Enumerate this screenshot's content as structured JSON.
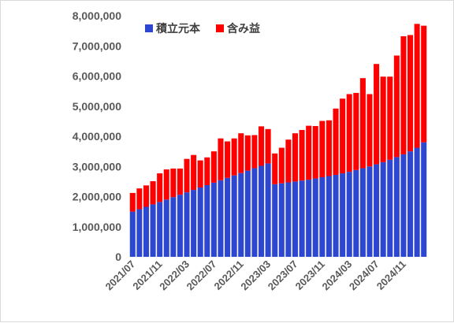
{
  "chart_data": {
    "type": "bar",
    "stacked": true,
    "title": "",
    "xlabel": "",
    "ylabel": "",
    "ylim": [
      0,
      8000000
    ],
    "y_ticks": [
      0,
      1000000,
      2000000,
      3000000,
      4000000,
      5000000,
      6000000,
      7000000,
      8000000
    ],
    "y_tick_labels": [
      "0",
      "1,000,000",
      "2,000,000",
      "3,000,000",
      "4,000,000",
      "5,000,000",
      "6,000,000",
      "7,000,000",
      "8,000,000"
    ],
    "x_tick_labels": [
      "2021/07",
      "2021/11",
      "2022/03",
      "2022/07",
      "2022/11",
      "2023/03",
      "2023/07",
      "2023/11",
      "2024/03",
      "2024/07",
      "2024/11"
    ],
    "grid": false,
    "legend_position": "top-left",
    "categories": [
      "2021/07",
      "2021/08",
      "2021/09",
      "2021/10",
      "2021/11",
      "2021/12",
      "2022/01",
      "2022/02",
      "2022/03",
      "2022/04",
      "2022/05",
      "2022/06",
      "2022/07",
      "2022/08",
      "2022/09",
      "2022/10",
      "2022/11",
      "2022/12",
      "2023/01",
      "2023/02",
      "2023/03",
      "2023/04",
      "2023/05",
      "2023/06",
      "2023/07",
      "2023/08",
      "2023/09",
      "2023/10",
      "2023/11",
      "2023/12",
      "2024/01",
      "2024/02",
      "2024/03",
      "2024/04",
      "2024/05",
      "2024/06",
      "2024/07",
      "2024/08",
      "2024/09",
      "2024/10",
      "2024/11",
      "2024/12",
      "2025/01",
      "2025/02"
    ],
    "series": [
      {
        "name": "積立元本",
        "color": "#2e47d1",
        "values": [
          1500000,
          1580000,
          1660000,
          1740000,
          1820000,
          1900000,
          1980000,
          2060000,
          2140000,
          2220000,
          2300000,
          2380000,
          2460000,
          2540000,
          2620000,
          2700000,
          2780000,
          2860000,
          2940000,
          3020000,
          3100000,
          2410000,
          2440000,
          2470000,
          2500000,
          2530000,
          2560000,
          2600000,
          2640000,
          2680000,
          2720000,
          2770000,
          2820000,
          2880000,
          2940000,
          3000000,
          3070000,
          3140000,
          3220000,
          3310000,
          3400000,
          3500000,
          3620000,
          3800000
        ]
      },
      {
        "name": "含み益",
        "color": "#ff0000",
        "values": [
          620000,
          690000,
          710000,
          770000,
          950000,
          1000000,
          950000,
          870000,
          1110000,
          1160000,
          900000,
          920000,
          1040000,
          1390000,
          1210000,
          1230000,
          1320000,
          1170000,
          1100000,
          1310000,
          1140000,
          1020000,
          1180000,
          1420000,
          1600000,
          1680000,
          1790000,
          1740000,
          1870000,
          1850000,
          2200000,
          2480000,
          2580000,
          2560000,
          2990000,
          2400000,
          3330000,
          2840000,
          2760000,
          3370000,
          3920000,
          3860000,
          4110000,
          3870000
        ]
      }
    ]
  }
}
